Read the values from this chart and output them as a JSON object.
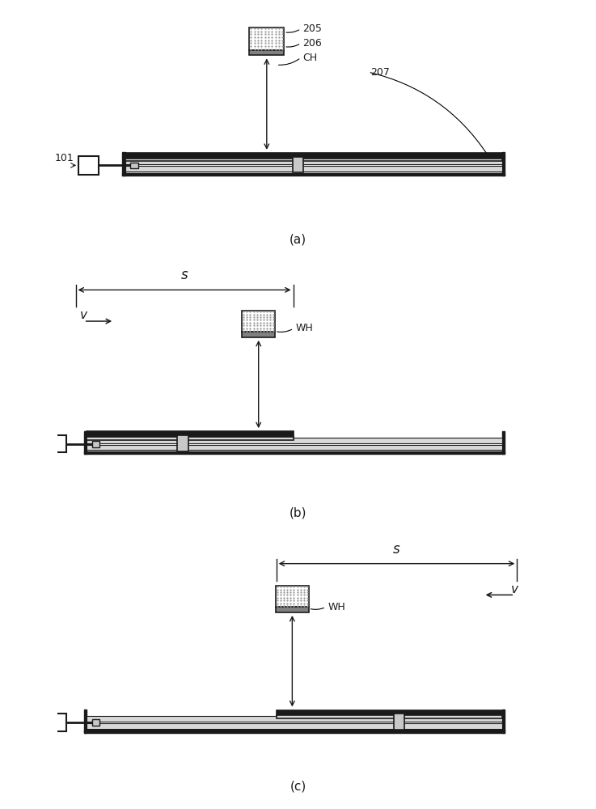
{
  "bg_color": "#ffffff",
  "dark_color": "#1a1a1a",
  "gray_color": "#c8c8c8",
  "mid_gray": "#808080",
  "light_gray": "#d8d8d8",
  "panel_a_label": "(a)",
  "panel_b_label": "(b)",
  "panel_c_label": "(c)"
}
